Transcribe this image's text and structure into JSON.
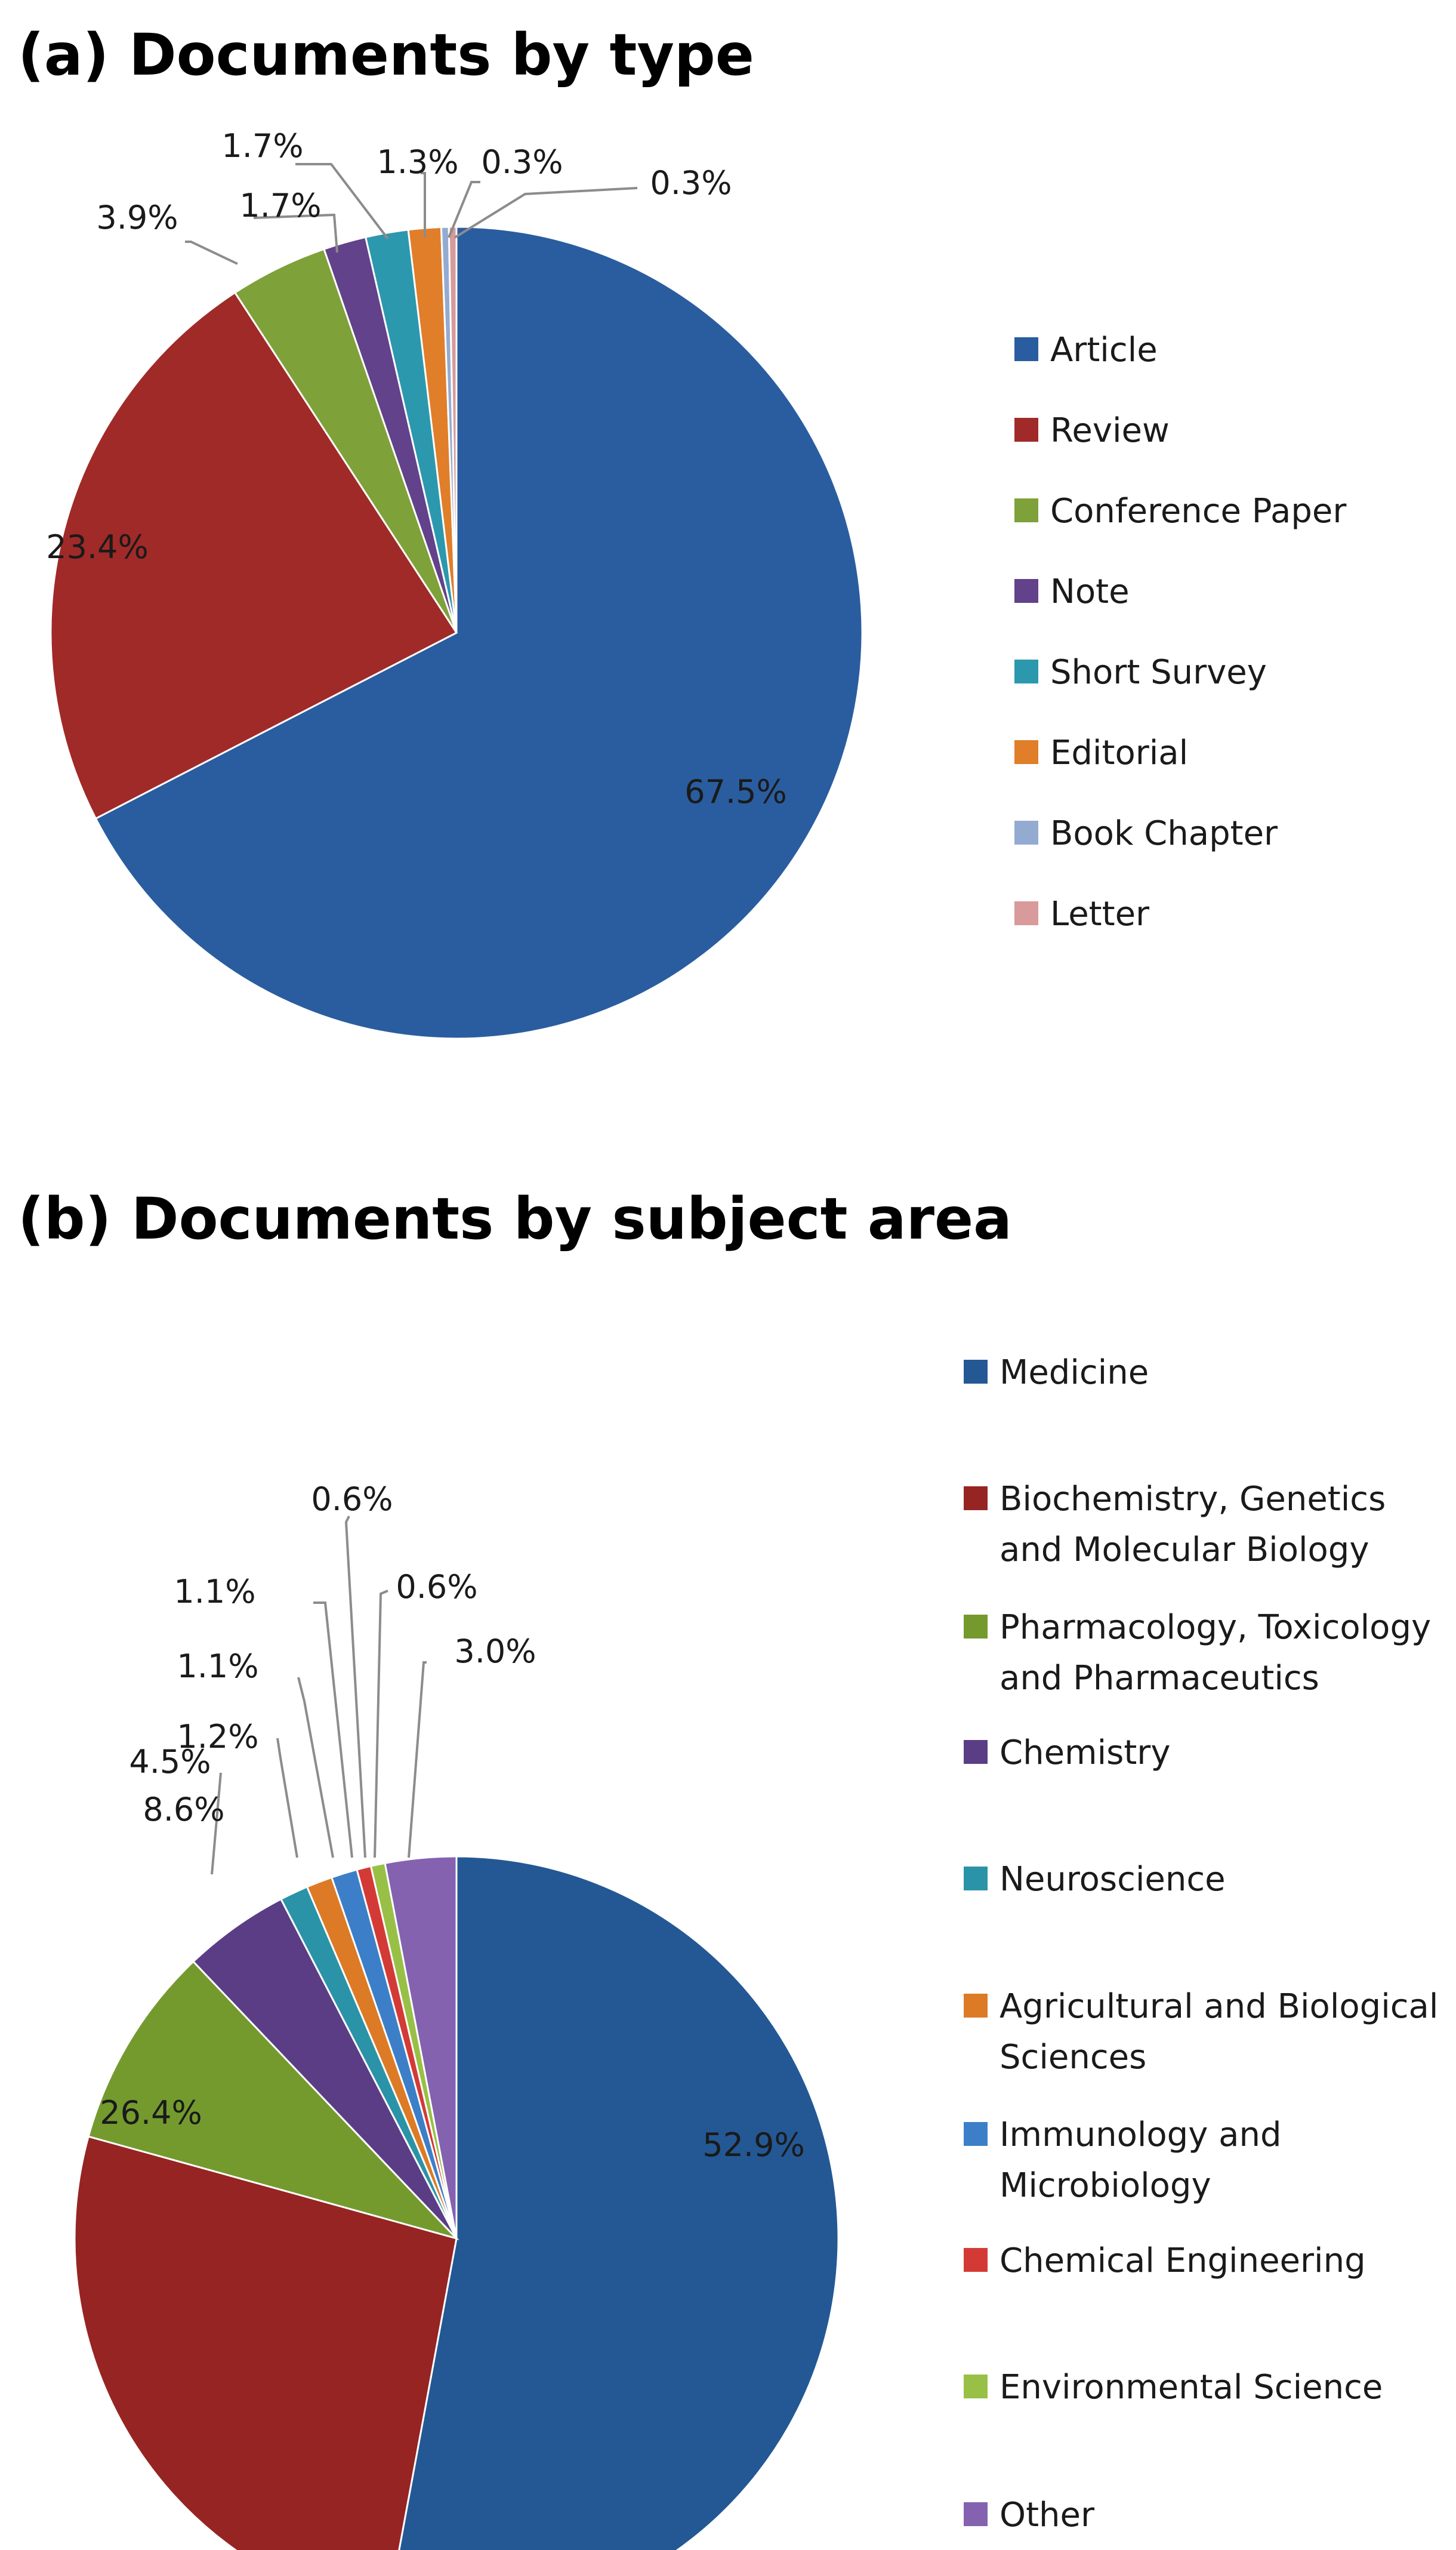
{
  "chart_data": [
    {
      "type": "pie",
      "title": "(a) Documents by type",
      "legend_position": "right",
      "slices": [
        {
          "label": "Article",
          "value": 67.5,
          "value_label": "67.5%",
          "color": "#2A5D9F"
        },
        {
          "label": "Review",
          "value": 23.4,
          "value_label": "23.4%",
          "color": "#A02A28"
        },
        {
          "label": "Conference Paper",
          "value": 3.9,
          "value_label": "3.9%",
          "color": "#7FA139"
        },
        {
          "label": "Note",
          "value": 1.7,
          "value_label": "1.7%",
          "color": "#62428A"
        },
        {
          "label": "Short Survey",
          "value": 1.7,
          "value_label": "1.7%",
          "color": "#2C98AE"
        },
        {
          "label": "Editorial",
          "value": 1.3,
          "value_label": "1.3%",
          "color": "#E07E2A"
        },
        {
          "label": "Book Chapter",
          "value": 0.3,
          "value_label": "0.3%",
          "color": "#94ABD1"
        },
        {
          "label": "Letter",
          "value": 0.3,
          "value_label": "0.3%",
          "color": "#D89A9A"
        }
      ]
    },
    {
      "type": "pie",
      "title": "(b) Documents by subject area",
      "legend_position": "right",
      "slices": [
        {
          "label": "Medicine",
          "legend_lines": [
            "Medicine"
          ],
          "value": 52.9,
          "value_label": "52.9%",
          "color": "#235894"
        },
        {
          "label": "Biochemistry, Genetics and Molecular Biology",
          "legend_lines": [
            "Biochemistry, Genetics",
            "and Molecular Biology"
          ],
          "value": 26.4,
          "value_label": "26.4%",
          "color": "#962423"
        },
        {
          "label": "Pharmacology, Toxicology and Pharmaceutics",
          "legend_lines": [
            "Pharmacology, Toxicology",
            "and Pharmaceutics"
          ],
          "value": 8.6,
          "value_label": "8.6%",
          "color": "#749A2E"
        },
        {
          "label": "Chemistry",
          "legend_lines": [
            "Chemistry"
          ],
          "value": 4.5,
          "value_label": "4.5%",
          "color": "#5B3D85"
        },
        {
          "label": "Neuroscience",
          "legend_lines": [
            "Neuroscience"
          ],
          "value": 1.2,
          "value_label": "1.2%",
          "color": "#2A93A8"
        },
        {
          "label": "Agricultural and Biological Sciences",
          "legend_lines": [
            "Agricultural and Biological",
            "Sciences"
          ],
          "value": 1.1,
          "value_label": "1.1%",
          "color": "#DD7A26"
        },
        {
          "label": "Immunology and Microbiology",
          "legend_lines": [
            "Immunology and",
            "Microbiology"
          ],
          "value": 1.1,
          "value_label": "1.1%",
          "color": "#3C7FC8"
        },
        {
          "label": "Chemical Engineering",
          "legend_lines": [
            "Chemical Engineering"
          ],
          "value": 0.6,
          "value_label": "0.6%",
          "color": "#D33A36"
        },
        {
          "label": "Environmental Science",
          "legend_lines": [
            "Environmental Science"
          ],
          "value": 0.6,
          "value_label": "0.6%",
          "color": "#98C046"
        },
        {
          "label": "Other",
          "legend_lines": [
            "Other"
          ],
          "value": 3.0,
          "value_label": "3.0%",
          "color": "#8462B0"
        }
      ]
    }
  ]
}
